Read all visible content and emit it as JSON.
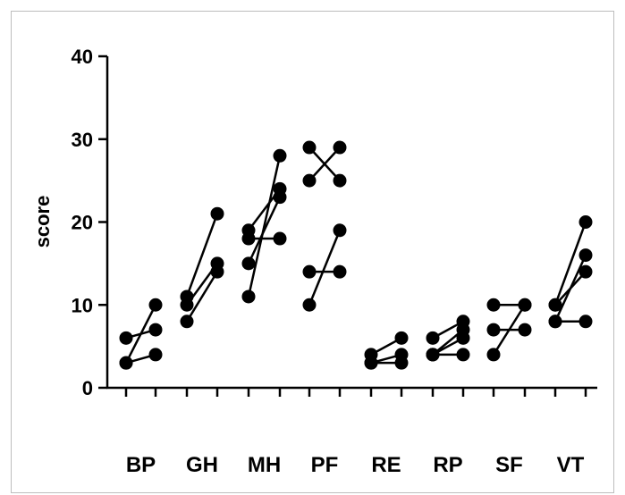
{
  "chart_data": {
    "type": "scatter",
    "title": "",
    "xlabel": "",
    "ylabel": "score",
    "ylim": [
      0,
      40
    ],
    "yticks": [
      0,
      10,
      20,
      30,
      40
    ],
    "grid": false,
    "legend": "none",
    "colors": {
      "marker": "#000000",
      "line": "#000000",
      "frame": "#bdbdbd"
    },
    "categories": [
      "BP",
      "GH",
      "MH",
      "PF",
      "RE",
      "RP",
      "SF",
      "VT"
    ],
    "groups": [
      {
        "category": "BP",
        "pairs": [
          [
            6,
            7
          ],
          [
            3,
            10
          ],
          [
            3,
            4
          ]
        ]
      },
      {
        "category": "GH",
        "pairs": [
          [
            11,
            21
          ],
          [
            10,
            15
          ],
          [
            8,
            14
          ]
        ]
      },
      {
        "category": "MH",
        "pairs": [
          [
            19,
            24
          ],
          [
            18,
            18
          ],
          [
            15,
            23
          ],
          [
            11,
            28
          ]
        ]
      },
      {
        "category": "PF",
        "pairs": [
          [
            29,
            25
          ],
          [
            25,
            29
          ],
          [
            14,
            14
          ],
          [
            10,
            19
          ]
        ]
      },
      {
        "category": "RE",
        "pairs": [
          [
            4,
            6
          ],
          [
            3,
            4
          ],
          [
            3,
            3
          ]
        ]
      },
      {
        "category": "RP",
        "pairs": [
          [
            6,
            8
          ],
          [
            4,
            7
          ],
          [
            4,
            6
          ],
          [
            4,
            4
          ]
        ]
      },
      {
        "category": "SF",
        "pairs": [
          [
            10,
            10
          ],
          [
            7,
            7
          ],
          [
            4,
            10
          ]
        ]
      },
      {
        "category": "VT",
        "pairs": [
          [
            10,
            20
          ],
          [
            8,
            16
          ],
          [
            10,
            14
          ],
          [
            8,
            8
          ]
        ]
      }
    ]
  }
}
